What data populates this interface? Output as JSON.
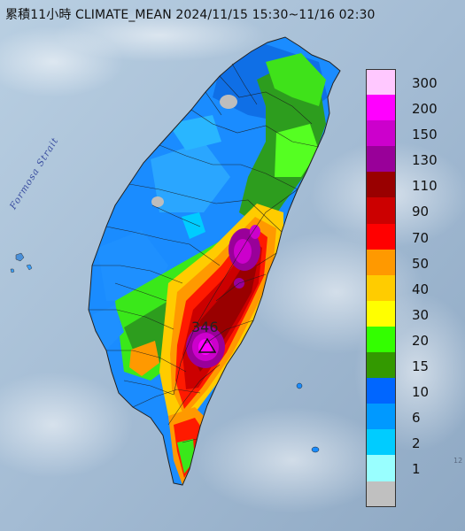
{
  "title": "累積11小時 CLIMATE_MEAN 2024/11/15 15:30~11/16 02:30",
  "strait_label": "Formosa Strait",
  "peak": {
    "value": "346",
    "marker": "triangle-marker"
  },
  "edge_text": "12",
  "legend": {
    "items": [
      {
        "label": "300",
        "color": "#ffc8ff"
      },
      {
        "label": "200",
        "color": "#ff00ff"
      },
      {
        "label": "150",
        "color": "#cc00cc"
      },
      {
        "label": "130",
        "color": "#990099"
      },
      {
        "label": "110",
        "color": "#990000"
      },
      {
        "label": "90",
        "color": "#cc0000"
      },
      {
        "label": "70",
        "color": "#ff0000"
      },
      {
        "label": "50",
        "color": "#ff9900"
      },
      {
        "label": "40",
        "color": "#ffcc00"
      },
      {
        "label": "30",
        "color": "#ffff00"
      },
      {
        "label": "20",
        "color": "#33ff00"
      },
      {
        "label": "15",
        "color": "#339900"
      },
      {
        "label": "10",
        "color": "#0066ff"
      },
      {
        "label": "6",
        "color": "#0099ff"
      },
      {
        "label": "2",
        "color": "#00ccff"
      },
      {
        "label": "1",
        "color": "#99ffff"
      },
      {
        "label": "",
        "color": "#c0c0c0"
      }
    ]
  }
}
